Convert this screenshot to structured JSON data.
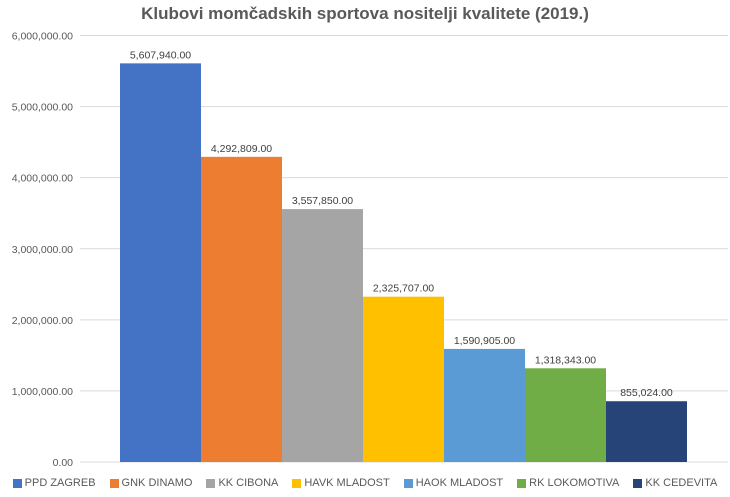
{
  "chart_data": {
    "type": "bar",
    "title": "Klubovi momčadskih sportova nositelji kvalitete (2019.)",
    "categories": [
      "PPD ZAGREB",
      "GNK DINAMO",
      "KK CIBONA",
      "HAVK MLADOST",
      "HAOK MLADOST",
      "RK LOKOMOTIVA",
      "KK CEDEVITA"
    ],
    "values": [
      5607940,
      4292809,
      3557850,
      2325707,
      1590905,
      1318343,
      855024
    ],
    "data_labels": [
      "5,607,940.00",
      "4,292,809.00",
      "3,557,850.00",
      "2,325,707.00",
      "1,590,905.00",
      "1,318,343.00",
      "855,024.00"
    ],
    "colors": [
      "#4472C4",
      "#ED7D31",
      "#A5A5A5",
      "#FFC000",
      "#5B9BD5",
      "#70AD47",
      "#264478"
    ],
    "ylim": [
      0,
      6000000
    ],
    "yticks": [
      0,
      1000000,
      2000000,
      3000000,
      4000000,
      5000000,
      6000000
    ],
    "ytick_labels": [
      "0.00",
      "1,000,000.00",
      "2,000,000.00",
      "3,000,000.00",
      "4,000,000.00",
      "5,000,000.00",
      "6,000,000.00"
    ],
    "grid": true,
    "legend": "bottom",
    "xlabel": "",
    "ylabel": ""
  }
}
